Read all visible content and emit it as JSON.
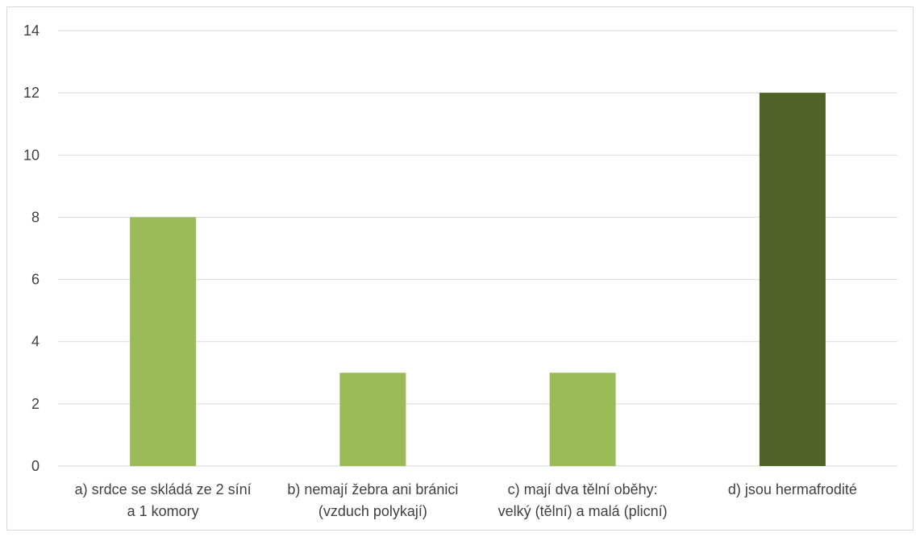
{
  "chart_data": {
    "type": "bar",
    "title": "",
    "xlabel": "",
    "ylabel": "",
    "categories": [
      [
        "a) srdce se skládá ze 2 síní",
        "a 1 komory"
      ],
      [
        "b) nemají žebra ani bránici",
        "(vzduch polykají)"
      ],
      [
        "c) mají dva tělní oběhy:",
        "velký (tělní) a malá (plicní)"
      ],
      [
        "d) jsou hermafrodité"
      ]
    ],
    "values": [
      8,
      3,
      3,
      12
    ],
    "bar_colors": [
      "#9bbb59",
      "#9bbb59",
      "#9bbb59",
      "#4f6228"
    ],
    "ylim": [
      0,
      14
    ],
    "yticks": [
      0,
      2,
      4,
      6,
      8,
      10,
      12,
      14
    ],
    "grid": true,
    "legend": "none"
  }
}
